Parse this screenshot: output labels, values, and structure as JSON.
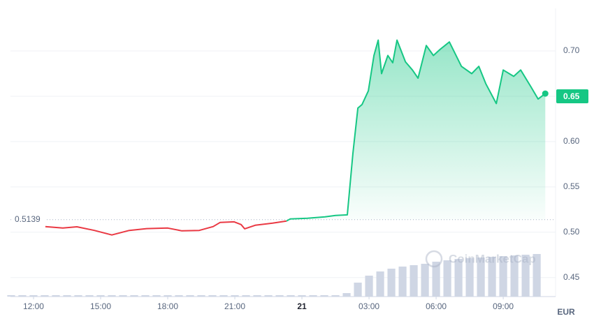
{
  "chart_data": {
    "type": "line",
    "x": [],
    "series": [
      {
        "color": "#ea3943",
        "x": [
          12.53,
          13.31,
          13.94,
          14.72,
          15.5,
          16.28,
          17.06,
          18,
          18.63,
          19.41,
          20.03,
          20.34,
          20.97,
          21.28,
          21.44,
          21.91,
          22.69,
          23.31
        ],
        "values": [
          0.5062,
          0.5046,
          0.506,
          0.502,
          0.497,
          0.502,
          0.504,
          0.5046,
          0.5015,
          0.502,
          0.5062,
          0.5108,
          0.5115,
          0.5085,
          0.5038,
          0.5077,
          0.51,
          0.5123
        ]
      },
      {
        "color": "#16c784",
        "x": [
          23.31,
          23.47,
          24.25,
          25.03,
          25.5,
          26.03,
          26.28,
          26.5,
          26.69,
          26.97,
          27.22,
          27.41,
          27.56,
          27.84,
          28.06,
          28.25,
          28.63,
          28.94,
          29.19,
          29.56,
          29.88,
          30.19,
          30.59,
          31.13,
          31.59,
          31.91,
          32.22,
          32.69,
          33.0,
          33.47,
          33.78,
          34.25,
          34.56,
          34.88
        ],
        "values": [
          0.5123,
          0.5146,
          0.5154,
          0.5169,
          0.5185,
          0.5192,
          0.587,
          0.637,
          0.641,
          0.656,
          0.695,
          0.712,
          0.675,
          0.695,
          0.687,
          0.712,
          0.688,
          0.679,
          0.67,
          0.706,
          0.695,
          0.702,
          0.71,
          0.683,
          0.675,
          0.683,
          0.664,
          0.642,
          0.679,
          0.672,
          0.679,
          0.66,
          0.647,
          0.653
        ]
      }
    ],
    "volume": {
      "color": "#cfd6e4",
      "x": [
        11,
        11.5,
        12,
        12.5,
        13,
        13.5,
        14,
        14.5,
        15,
        15.5,
        16,
        16.5,
        17,
        17.5,
        18,
        18.5,
        19,
        19.5,
        20,
        20.5,
        21,
        21.5,
        22,
        22.5,
        23,
        23.5,
        24,
        24.5,
        25,
        25.5,
        26,
        26.5,
        27,
        27.5,
        28,
        28.5,
        29,
        29.5,
        30,
        30.5,
        31,
        31.5,
        32,
        32.5,
        33,
        33.5,
        34,
        34.5
      ],
      "values": [
        2,
        2,
        2,
        2,
        2,
        2,
        2,
        2,
        2,
        2,
        2,
        2,
        2,
        2,
        2,
        2,
        2,
        2,
        2,
        2,
        2,
        2,
        2,
        2,
        2,
        2,
        2,
        2,
        2,
        2,
        5,
        20,
        30,
        36,
        40,
        43,
        45,
        47,
        50,
        52,
        54,
        55,
        56,
        57,
        58,
        59,
        60,
        61
      ],
      "vlim": [
        0,
        100
      ]
    },
    "baseline": 0.5139,
    "last_price": 0.65,
    "xlim": [
      10.97,
      35.34
    ],
    "ylim": [
      0.429,
      0.747
    ],
    "xticks": [
      {
        "value": 12,
        "label": "12:00"
      },
      {
        "value": 15,
        "label": "15:00"
      },
      {
        "value": 18,
        "label": "18:00"
      },
      {
        "value": 21,
        "label": "21:00"
      },
      {
        "value": 24,
        "label": "21"
      },
      {
        "value": 27,
        "label": "03:00"
      },
      {
        "value": 30,
        "label": "06:00"
      },
      {
        "value": 33,
        "label": "09:00"
      }
    ],
    "yticks": [
      0.45,
      {
        "value": 0.5,
        "label": "0.50"
      },
      0.55,
      {
        "value": 0.6,
        "label": "0.60"
      },
      0.65,
      {
        "value": 0.7,
        "label": "0.70"
      }
    ],
    "y_unit": "EUR",
    "watermark": "CoinMarketCap",
    "grid": true
  }
}
